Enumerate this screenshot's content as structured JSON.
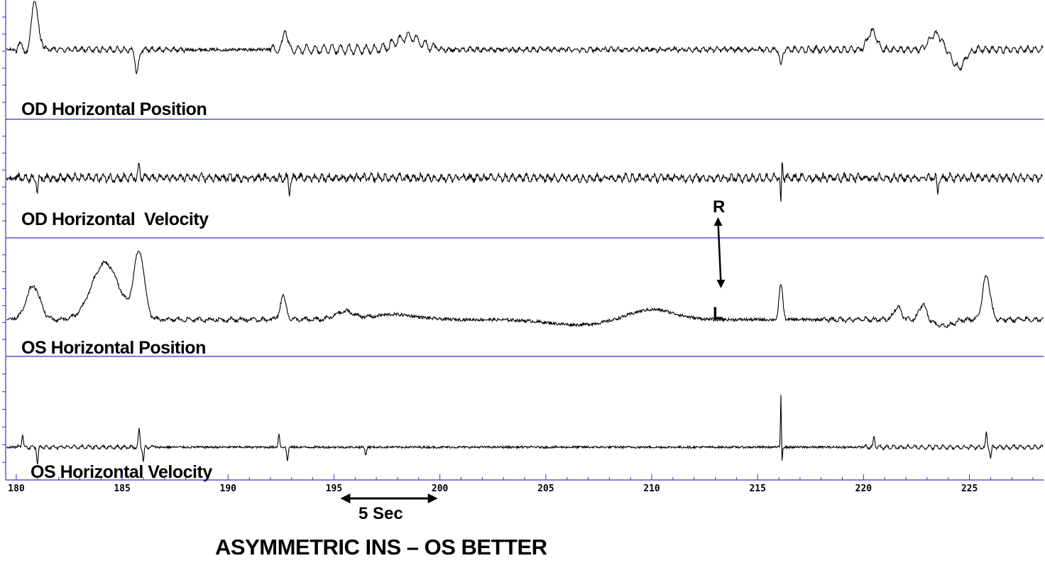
{
  "chart_data": {
    "type": "line",
    "caption": "ASYMMETRIC INS – OS BETTER",
    "xlim": [
      179.5,
      228.5
    ],
    "x_ticks": [
      "180",
      "185",
      "190",
      "195",
      "200",
      "205",
      "210",
      "215",
      "220",
      "225"
    ],
    "scale_bar": {
      "label": "5 Sec",
      "from": 195.3,
      "to": 199.9
    },
    "direction_arrow": {
      "top_label": "R",
      "bottom_label": "L",
      "x": 213.2
    },
    "panels": [
      {
        "name": "OD Horizontal Position",
        "ylim": [
          -1,
          1
        ],
        "baseline": 0.18,
        "noise": 0.03,
        "components": [
          {
            "from": 180.0,
            "to": 181.2,
            "amp": 0.22,
            "freq": 1.6
          },
          {
            "from": 181.2,
            "to": 188.0,
            "amp": 0.08,
            "freq": 3.0
          },
          {
            "from": 192.0,
            "to": 199.8,
            "amp": 0.16,
            "freq": 2.5
          },
          {
            "from": 199.8,
            "to": 215.8,
            "amp": 0.06,
            "freq": 3.0
          },
          {
            "from": 215.8,
            "to": 228.5,
            "amp": 0.1,
            "freq": 3.0
          }
        ],
        "events": [
          {
            "x": 180.9,
            "dy": 0.85,
            "w": 0.25
          },
          {
            "x": 185.7,
            "dy": -0.45,
            "w": 0.12
          },
          {
            "x": 192.7,
            "dy": 0.45,
            "w": 0.12
          },
          {
            "x": 198.5,
            "dy": 0.25,
            "w": 0.8
          },
          {
            "x": 216.1,
            "dy": -0.35,
            "w": 0.08
          },
          {
            "x": 220.4,
            "dy": 0.35,
            "w": 0.3
          },
          {
            "x": 223.4,
            "dy": 0.3,
            "w": 0.4
          },
          {
            "x": 224.5,
            "dy": -0.35,
            "w": 0.4
          }
        ]
      },
      {
        "name": "OD Horizontal  Velocity",
        "ylim": [
          -1,
          1
        ],
        "baseline": 0.0,
        "noise": 0.05,
        "components": [
          {
            "from": 180.0,
            "to": 228.5,
            "amp": 0.1,
            "freq": 3.0
          }
        ],
        "events": [
          {
            "x": 181.0,
            "dy": -0.3,
            "w": 0.05
          },
          {
            "x": 185.8,
            "dy": 0.25,
            "w": 0.05
          },
          {
            "x": 192.9,
            "dy": -0.3,
            "w": 0.05
          },
          {
            "x": 216.1,
            "dy": -0.6,
            "w": 0.04
          },
          {
            "x": 216.15,
            "dy": 0.4,
            "w": 0.04
          },
          {
            "x": 223.5,
            "dy": -0.3,
            "w": 0.05
          }
        ]
      },
      {
        "name": "OS Horizontal Position",
        "ylim": [
          -1,
          1
        ],
        "baseline": -0.45,
        "noise": 0.03,
        "components": [
          {
            "from": 180.0,
            "to": 197.0,
            "amp": 0.05,
            "freq": 2.0
          },
          {
            "from": 218.0,
            "to": 228.5,
            "amp": 0.06,
            "freq": 2.5
          }
        ],
        "events": [
          {
            "x": 180.8,
            "dy": 0.65,
            "w": 0.45
          },
          {
            "x": 184.2,
            "dy": 1.1,
            "w": 0.9
          },
          {
            "x": 185.8,
            "dy": 1.3,
            "w": 0.35
          },
          {
            "x": 192.6,
            "dy": 0.45,
            "w": 0.2
          },
          {
            "x": 195.5,
            "dy": 0.15,
            "w": 0.6
          },
          {
            "x": 197.8,
            "dy": 0.1,
            "w": 1.5
          },
          {
            "x": 210.0,
            "dy": 0.2,
            "w": 1.5
          },
          {
            "x": 206.5,
            "dy": -0.1,
            "w": 2.0
          },
          {
            "x": 216.1,
            "dy": 0.7,
            "w": 0.12
          },
          {
            "x": 221.6,
            "dy": 0.25,
            "w": 0.25
          },
          {
            "x": 222.8,
            "dy": 0.3,
            "w": 0.25
          },
          {
            "x": 223.8,
            "dy": -0.12,
            "w": 0.6
          },
          {
            "x": 225.8,
            "dy": 0.85,
            "w": 0.25
          }
        ]
      },
      {
        "name": "OS Horizontal Velocity",
        "ylim": [
          -1,
          1
        ],
        "baseline": -0.55,
        "noise": 0.02,
        "components": [
          {
            "from": 180.0,
            "to": 186.5,
            "amp": 0.05,
            "freq": 3.0
          },
          {
            "from": 220.0,
            "to": 228.5,
            "amp": 0.06,
            "freq": 3.0
          }
        ],
        "events": [
          {
            "x": 180.3,
            "dy": 0.25,
            "w": 0.05
          },
          {
            "x": 181.0,
            "dy": -0.3,
            "w": 0.05
          },
          {
            "x": 185.8,
            "dy": 0.35,
            "w": 0.05
          },
          {
            "x": 186.0,
            "dy": -0.25,
            "w": 0.05
          },
          {
            "x": 192.4,
            "dy": 0.25,
            "w": 0.05
          },
          {
            "x": 192.8,
            "dy": -0.25,
            "w": 0.05
          },
          {
            "x": 196.5,
            "dy": -0.15,
            "w": 0.05
          },
          {
            "x": 216.1,
            "dy": 1.0,
            "w": 0.03
          },
          {
            "x": 216.15,
            "dy": -0.3,
            "w": 0.03
          },
          {
            "x": 220.5,
            "dy": 0.2,
            "w": 0.05
          },
          {
            "x": 225.8,
            "dy": 0.25,
            "w": 0.05
          },
          {
            "x": 226.0,
            "dy": -0.2,
            "w": 0.05
          }
        ]
      }
    ]
  }
}
